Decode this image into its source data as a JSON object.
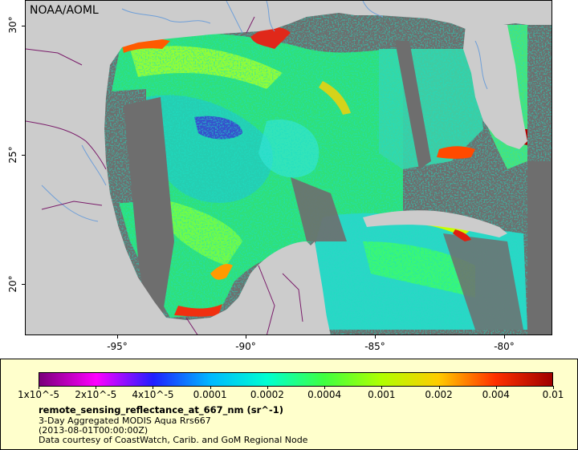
{
  "map": {
    "source_label": "NOAA/AOML",
    "lat_ticks": [
      "30°",
      "25°",
      "20°"
    ],
    "lon_ticks": [
      "-95°",
      "-90°",
      "-85°",
      "-80°"
    ]
  },
  "legend": {
    "colorbar_ticks": [
      "1x10^-5",
      "2x10^-5",
      "4x10^-5",
      "0.0001",
      "0.0002",
      "0.0004",
      "0.001",
      "0.002",
      "0.004",
      "0.01"
    ],
    "colors": [
      "#7a007a",
      "#ff00ff",
      "#2020ff",
      "#00b8ff",
      "#00ffd0",
      "#40ff40",
      "#b0ff00",
      "#ffcc00",
      "#ff3000",
      "#a00000"
    ],
    "variable_name": "remote_sensing_reflectance_at_667_nm (sr^-1)",
    "product": "3-Day Aggregated MODIS Aqua Rrs667",
    "time": "(2013-08-01T00:00:00Z)",
    "credit": "Data courtesy of CoastWatch, Carib. and GoM Regional Node"
  },
  "palette": {
    "land": "#cccccc",
    "nodata": "#6e6e6e",
    "legend_bg": "#ffffcc",
    "rivers": "#6f9fd8",
    "borders": "#7a1c6a"
  }
}
